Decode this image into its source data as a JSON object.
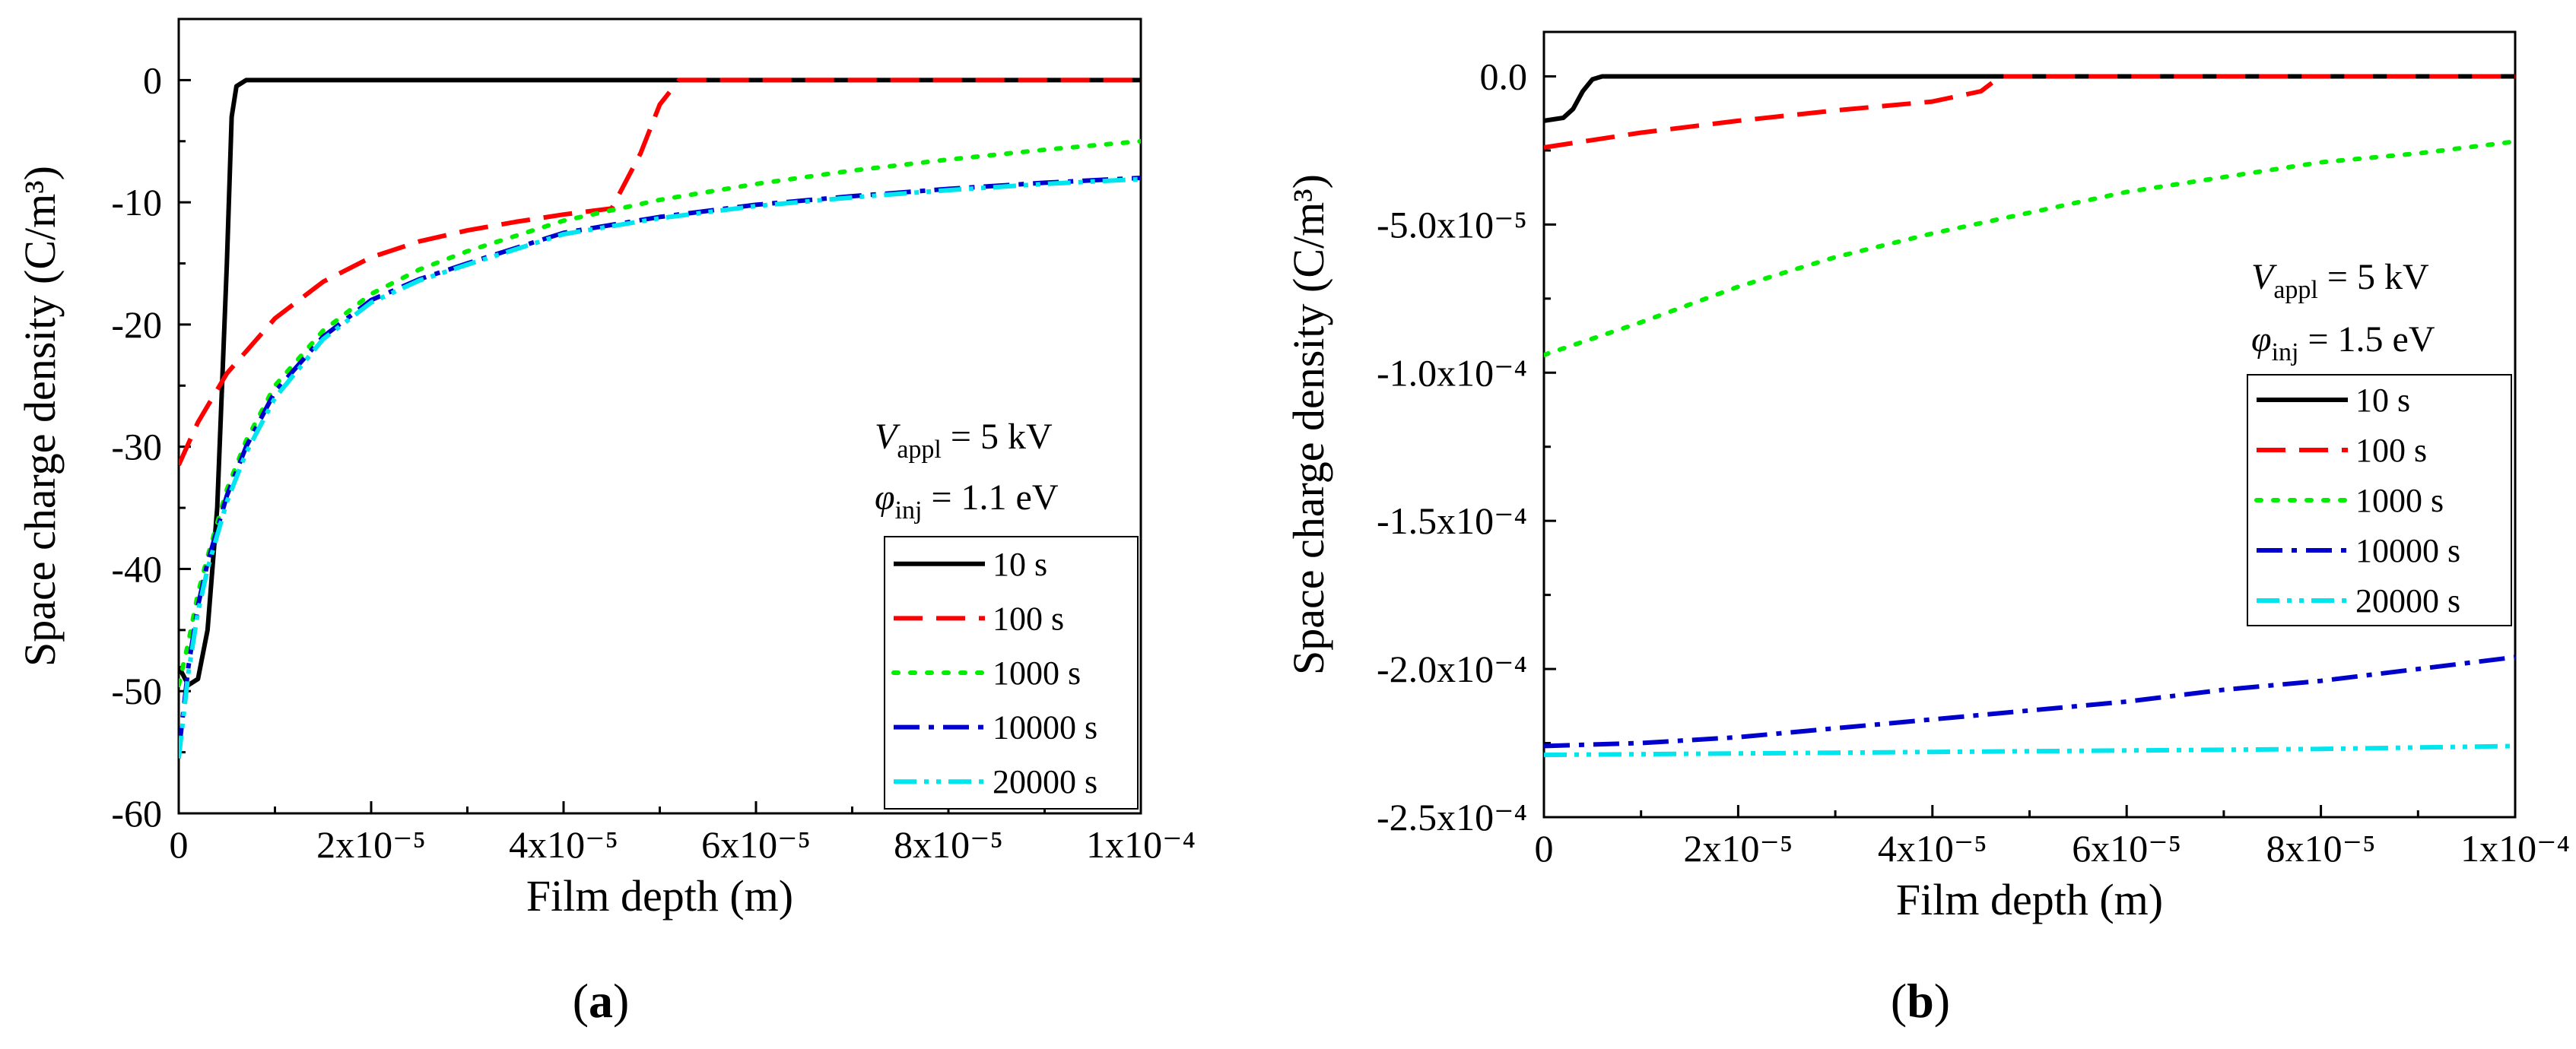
{
  "chart_data": [
    {
      "type": "line",
      "panel_label": "(a)",
      "xlabel": "Film depth (m)",
      "ylabel": "Space charge density (C/m³)",
      "xlim": [
        0,
        0.0001
      ],
      "ylim": [
        -60,
        5
      ],
      "xticks": [
        0,
        2e-05,
        4e-05,
        6e-05,
        8e-05,
        0.0001
      ],
      "xtick_labels": [
        "0",
        "2x10⁻⁵",
        "4x10⁻⁵",
        "6x10⁻⁵",
        "8x10⁻⁵",
        "1x10⁻⁴"
      ],
      "yticks": [
        0,
        -10,
        -20,
        -30,
        -40,
        -50,
        -60
      ],
      "ytick_labels": [
        "0",
        "-10",
        "-20",
        "-30",
        "-40",
        "-50",
        "-60"
      ],
      "annotations": [
        "V_appl = 5 kV",
        "φ_inj = 1.1 eV"
      ],
      "legend_position": "lower-right",
      "series": [
        {
          "name": "10 s",
          "color": "#000000",
          "dash": "solid",
          "x": [
            0,
            1e-06,
            2e-06,
            3e-06,
            4e-06,
            5e-06,
            5.5e-06,
            6e-06,
            7e-06,
            1e-05,
            2e-05,
            4e-05,
            6e-05,
            8e-05,
            0.0001
          ],
          "y": [
            -48,
            -49.5,
            -49,
            -45,
            -35,
            -15,
            -3,
            -0.5,
            0,
            0,
            0,
            0,
            0,
            0,
            0
          ]
        },
        {
          "name": "100 s",
          "color": "#ff0000",
          "dash": "dashed",
          "x": [
            0,
            2e-06,
            5e-06,
            1e-05,
            1.5e-05,
            2e-05,
            2.5e-05,
            3e-05,
            3.5e-05,
            4e-05,
            4.5e-05,
            4.8e-05,
            5e-05,
            5.2e-05,
            6e-05,
            8e-05,
            0.0001
          ],
          "y": [
            -31.5,
            -28,
            -24,
            -19.5,
            -16.5,
            -14.5,
            -13.2,
            -12.3,
            -11.6,
            -11,
            -10.5,
            -6,
            -2,
            0,
            0,
            0,
            0
          ]
        },
        {
          "name": "1000 s",
          "color": "#00ee00",
          "dash": "dotted",
          "x": [
            0,
            1e-06,
            2e-06,
            3e-06,
            5e-06,
            7e-06,
            1e-05,
            1.5e-05,
            2e-05,
            2.5e-05,
            3e-05,
            4e-05,
            5e-05,
            6e-05,
            7e-05,
            8e-05,
            9e-05,
            0.0001
          ],
          "y": [
            -49.5,
            -46,
            -42,
            -39,
            -33.5,
            -29.5,
            -25,
            -20.5,
            -17.5,
            -15.5,
            -14,
            -11.5,
            -9.8,
            -8.5,
            -7.4,
            -6.5,
            -5.7,
            -5
          ]
        },
        {
          "name": "10000 s",
          "color": "#0000cc",
          "dash": "dashdot",
          "x": [
            0,
            1e-06,
            2e-06,
            3e-06,
            5e-06,
            7e-06,
            1e-05,
            1.5e-05,
            2e-05,
            2.5e-05,
            3e-05,
            4e-05,
            5e-05,
            6e-05,
            7e-05,
            8e-05,
            9e-05,
            0.0001
          ],
          "y": [
            -55,
            -48,
            -43,
            -39.5,
            -34,
            -30,
            -25.5,
            -21,
            -18,
            -16.3,
            -15,
            -12.5,
            -11.2,
            -10.2,
            -9.5,
            -8.9,
            -8.4,
            -8
          ]
        },
        {
          "name": "20000 s",
          "color": "#00e5ee",
          "dash": "dashdotdot",
          "x": [
            0,
            1e-06,
            2e-06,
            3e-06,
            5e-06,
            7e-06,
            1e-05,
            1.5e-05,
            2e-05,
            2.5e-05,
            3e-05,
            4e-05,
            5e-05,
            6e-05,
            7e-05,
            8e-05,
            9e-05,
            0.0001
          ],
          "y": [
            -55.5,
            -48.5,
            -43.5,
            -40,
            -34.5,
            -30.5,
            -26,
            -21.2,
            -18.2,
            -16.4,
            -15.1,
            -12.6,
            -11.3,
            -10.3,
            -9.6,
            -9,
            -8.5,
            -8.1
          ]
        }
      ]
    },
    {
      "type": "line",
      "panel_label": "(b)",
      "xlabel": "Film depth (m)",
      "ylabel": "Space charge density (C/m³)",
      "xlim": [
        0,
        0.0001
      ],
      "ylim": [
        -0.00025,
        1.5e-05
      ],
      "xticks": [
        0,
        2e-05,
        4e-05,
        6e-05,
        8e-05,
        0.0001
      ],
      "xtick_labels": [
        "0",
        "2x10⁻⁵",
        "4x10⁻⁵",
        "6x10⁻⁵",
        "8x10⁻⁵",
        "1x10⁻⁴"
      ],
      "yticks": [
        0,
        -5e-05,
        -0.0001,
        -0.00015,
        -0.0002,
        -0.00025
      ],
      "ytick_labels": [
        "0.0",
        "-5.0x10⁻⁵",
        "-1.0x10⁻⁴",
        "-1.5x10⁻⁴",
        "-2.0x10⁻⁴",
        "-2.5x10⁻⁴"
      ],
      "annotations": [
        "V_appl = 5 kV",
        "φ_inj = 1.5 eV"
      ],
      "legend_position": "right",
      "series": [
        {
          "name": "10 s",
          "color": "#000000",
          "dash": "solid",
          "x": [
            0,
            2e-06,
            3e-06,
            4e-06,
            5e-06,
            6e-06,
            8e-06,
            1e-05,
            4e-05,
            8e-05,
            0.0001
          ],
          "y": [
            -1.5e-05,
            -1.4e-05,
            -1.1e-05,
            -5e-06,
            -1e-06,
            0,
            0,
            0,
            0,
            0,
            0
          ]
        },
        {
          "name": "100 s",
          "color": "#ff0000",
          "dash": "dashed",
          "x": [
            0,
            1e-05,
            2e-05,
            3e-05,
            4e-05,
            4.5e-05,
            4.7e-05,
            5e-05,
            8e-05,
            0.0001
          ],
          "y": [
            -2.4e-05,
            -1.9e-05,
            -1.5e-05,
            -1.15e-05,
            -8.5e-06,
            -5e-06,
            0,
            0,
            0,
            0
          ]
        },
        {
          "name": "1000 s",
          "color": "#00ee00",
          "dash": "dotted",
          "x": [
            0,
            1e-05,
            2e-05,
            3e-05,
            4e-05,
            5e-05,
            6e-05,
            7e-05,
            8e-05,
            9e-05,
            0.0001
          ],
          "y": [
            -9.4e-05,
            -8.3e-05,
            -7.1e-05,
            -6.1e-05,
            -5.3e-05,
            -4.6e-05,
            -3.9e-05,
            -3.4e-05,
            -2.9e-05,
            -2.6e-05,
            -2.2e-05
          ]
        },
        {
          "name": "10000 s",
          "color": "#0000cc",
          "dash": "dashdot",
          "x": [
            0,
            1e-05,
            2e-05,
            3e-05,
            4e-05,
            5e-05,
            6e-05,
            7e-05,
            8e-05,
            9e-05,
            0.0001
          ],
          "y": [
            -0.000226,
            -0.000225,
            -0.000223,
            -0.00022,
            -0.000217,
            -0.000214,
            -0.000211,
            -0.000207,
            -0.000204,
            -0.0002,
            -0.000196
          ]
        },
        {
          "name": "20000 s",
          "color": "#00e5ee",
          "dash": "dashdotdot",
          "x": [
            0,
            2e-05,
            4e-05,
            6e-05,
            8e-05,
            0.0001
          ],
          "y": [
            -0.000229,
            -0.0002285,
            -0.000228,
            -0.0002275,
            -0.000227,
            -0.000226
          ]
        }
      ]
    }
  ]
}
